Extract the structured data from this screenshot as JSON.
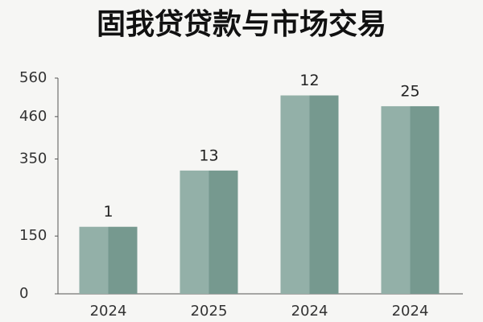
{
  "chart_data": {
    "type": "bar",
    "title": "固我贷贷款与市场交易",
    "categories": [
      "2024",
      "2025",
      "2024",
      "2024"
    ],
    "values": [
      174,
      320,
      515,
      487
    ],
    "annotations": [
      "1",
      "13",
      "12",
      "25"
    ],
    "colors": [
      "#93b0a8",
      "#76998f"
    ],
    "ylim": [
      0,
      560
    ],
    "yticks": [
      0,
      150,
      350,
      460,
      560
    ],
    "grid": false
  }
}
